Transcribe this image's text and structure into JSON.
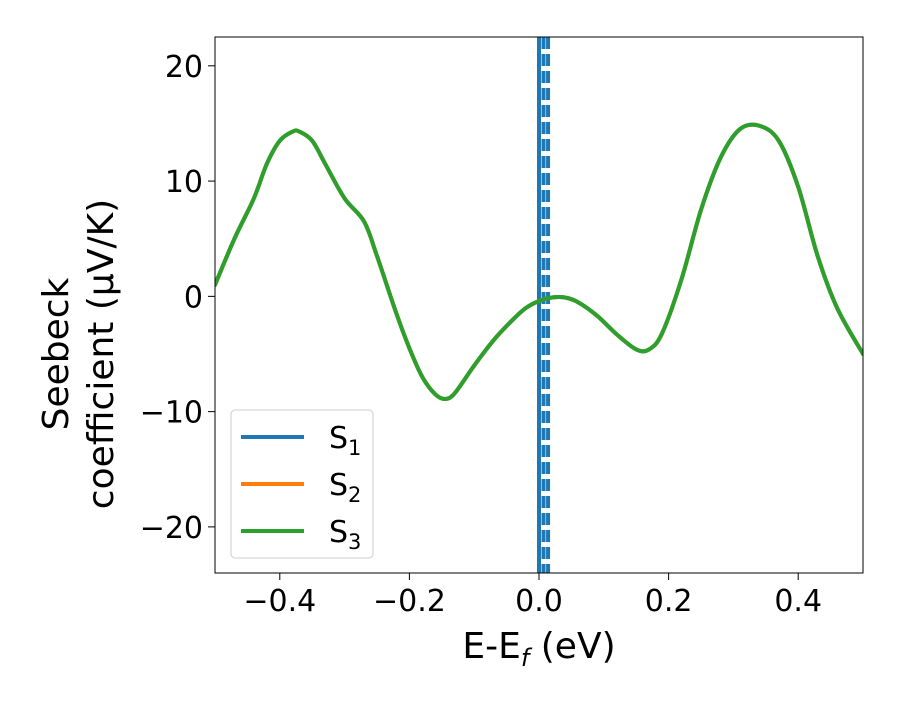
{
  "chart_data": {
    "type": "line",
    "xlabel": "E-E",
    "xlabel_sub": "f",
    "xlabel_unit": " (eV)",
    "ylabel_line1": "Seebeck",
    "ylabel_line2": "coefficient  (μV/K)",
    "xlim": [
      -0.5,
      0.5
    ],
    "ylim": [
      -24,
      22.5
    ],
    "x_ticks": [
      -0.4,
      -0.2,
      0.0,
      0.2,
      0.4
    ],
    "x_tick_labels": [
      "−0.4",
      "−0.2",
      "0.0",
      "0.2",
      "0.4"
    ],
    "y_ticks": [
      -20,
      -10,
      0,
      10,
      20
    ],
    "y_tick_labels": [
      "−20",
      "−10",
      "0",
      "10",
      "20"
    ],
    "grid": false,
    "legend_position": "lower-left",
    "vertical_lines": [
      {
        "x": 0.0,
        "color": "#000000",
        "style": "solid"
      },
      {
        "x": 0.0,
        "color": "#1f77b4",
        "style": "solid"
      },
      {
        "x": 0.007,
        "color": "#1f77b4",
        "style": "dashed"
      },
      {
        "x": 0.014,
        "color": "#1f77b4",
        "style": "dashed"
      }
    ],
    "series": [
      {
        "label": "S",
        "sub": "1",
        "color": "#1f77b4",
        "x": [
          -0.5,
          -0.47,
          -0.44,
          -0.42,
          -0.4,
          -0.38,
          -0.37,
          -0.35,
          -0.33,
          -0.3,
          -0.27,
          -0.25,
          -0.22,
          -0.2,
          -0.18,
          -0.16,
          -0.145,
          -0.13,
          -0.1,
          -0.07,
          -0.04,
          -0.02,
          0.0,
          0.02,
          0.04,
          0.06,
          0.09,
          0.12,
          0.15,
          0.17,
          0.19,
          0.22,
          0.25,
          0.28,
          0.31,
          0.34,
          0.37,
          0.4,
          0.43,
          0.46,
          0.5
        ],
        "y": [
          1.0,
          5.0,
          8.5,
          11.5,
          13.5,
          14.3,
          14.3,
          13.5,
          11.5,
          8.5,
          6.5,
          3.5,
          -1.5,
          -4.5,
          -7.0,
          -8.5,
          -8.9,
          -8.4,
          -6.0,
          -3.8,
          -2.0,
          -1.0,
          -0.4,
          -0.1,
          -0.1,
          -0.5,
          -1.7,
          -3.3,
          -4.6,
          -4.6,
          -3.2,
          1.5,
          7.5,
          12.0,
          14.5,
          14.8,
          13.5,
          9.5,
          3.5,
          -1.0,
          -5.0
        ]
      },
      {
        "label": "S",
        "sub": "2",
        "color": "#ff7f0e",
        "x": [
          -0.5,
          -0.47,
          -0.44,
          -0.42,
          -0.4,
          -0.38,
          -0.37,
          -0.35,
          -0.33,
          -0.3,
          -0.27,
          -0.25,
          -0.22,
          -0.2,
          -0.18,
          -0.16,
          -0.145,
          -0.13,
          -0.1,
          -0.07,
          -0.04,
          -0.02,
          0.0,
          0.02,
          0.04,
          0.06,
          0.09,
          0.12,
          0.15,
          0.17,
          0.19,
          0.22,
          0.25,
          0.28,
          0.31,
          0.34,
          0.37,
          0.4,
          0.43,
          0.46,
          0.5
        ],
        "y": [
          1.0,
          5.0,
          8.5,
          11.5,
          13.5,
          14.3,
          14.3,
          13.5,
          11.5,
          8.5,
          6.5,
          3.5,
          -1.5,
          -4.5,
          -7.0,
          -8.5,
          -8.9,
          -8.4,
          -6.0,
          -3.8,
          -2.0,
          -1.0,
          -0.4,
          -0.1,
          -0.1,
          -0.5,
          -1.7,
          -3.3,
          -4.6,
          -4.6,
          -3.2,
          1.5,
          7.5,
          12.0,
          14.5,
          14.8,
          13.5,
          9.5,
          3.5,
          -1.0,
          -5.0
        ]
      },
      {
        "label": "S",
        "sub": "3",
        "color": "#2ca02c",
        "x": [
          -0.5,
          -0.47,
          -0.44,
          -0.42,
          -0.4,
          -0.38,
          -0.37,
          -0.35,
          -0.33,
          -0.3,
          -0.27,
          -0.25,
          -0.22,
          -0.2,
          -0.18,
          -0.16,
          -0.145,
          -0.13,
          -0.1,
          -0.07,
          -0.04,
          -0.02,
          0.0,
          0.02,
          0.04,
          0.06,
          0.09,
          0.12,
          0.15,
          0.17,
          0.19,
          0.22,
          0.25,
          0.28,
          0.31,
          0.34,
          0.37,
          0.4,
          0.43,
          0.46,
          0.5
        ],
        "y": [
          1.0,
          5.0,
          8.5,
          11.5,
          13.5,
          14.3,
          14.3,
          13.5,
          11.5,
          8.5,
          6.5,
          3.5,
          -1.5,
          -4.5,
          -7.0,
          -8.5,
          -8.9,
          -8.4,
          -6.0,
          -3.8,
          -2.0,
          -1.0,
          -0.4,
          -0.1,
          -0.1,
          -0.5,
          -1.7,
          -3.3,
          -4.6,
          -4.6,
          -3.2,
          1.5,
          7.5,
          12.0,
          14.5,
          14.8,
          13.5,
          9.5,
          3.5,
          -1.0,
          -5.0
        ]
      }
    ]
  }
}
